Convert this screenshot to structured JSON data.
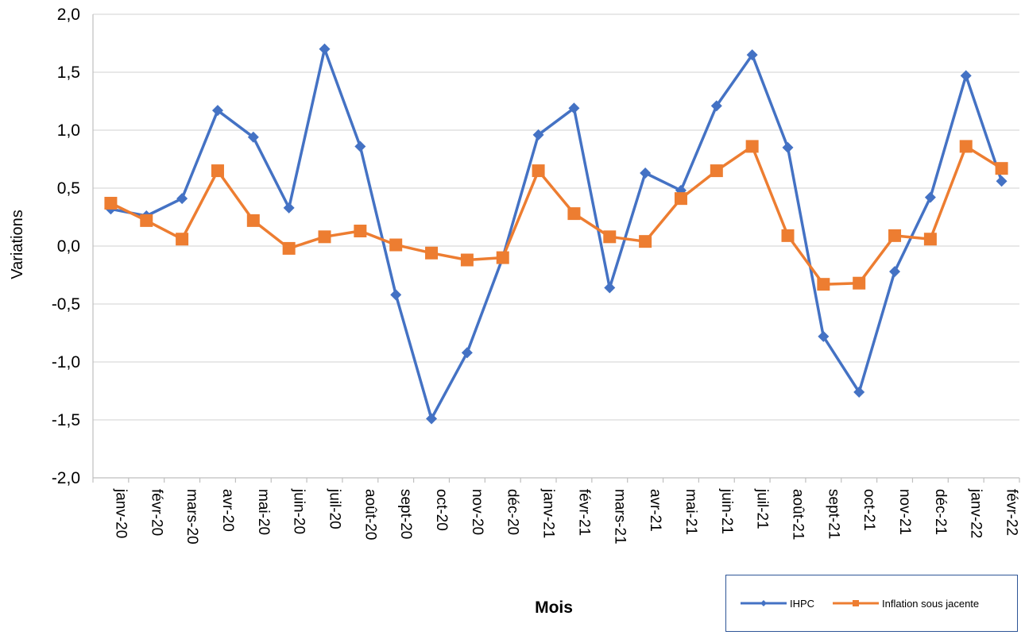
{
  "chart_data": {
    "type": "line",
    "title": "",
    "xlabel": "Mois",
    "ylabel": "Variations",
    "ylim": [
      -2.0,
      2.0
    ],
    "yticks": [
      "2,0",
      "1,5",
      "1,0",
      "0,5",
      "0,0",
      "-0,5",
      "-1,0",
      "-1,5",
      "-2,0"
    ],
    "categories": [
      "janv-20",
      "févr-20",
      "mars-20",
      "avr-20",
      "mai-20",
      "juin-20",
      "juil-20",
      "août-20",
      "sept-20",
      "oct-20",
      "nov-20",
      "déc-20",
      "janv-21",
      "févr-21",
      "mars-21",
      "avr-21",
      "mai-21",
      "juin-21",
      "juil-21",
      "août-21",
      "sept-21",
      "oct-21",
      "nov-21",
      "déc-21",
      "janv-22",
      "févr-22"
    ],
    "series": [
      {
        "name": "IHPC",
        "color": "#4472c4",
        "marker": "diamond",
        "values": [
          0.32,
          0.26,
          0.41,
          1.17,
          0.94,
          0.33,
          1.7,
          0.86,
          -0.42,
          -1.49,
          -0.92,
          -0.1,
          0.96,
          1.19,
          -0.36,
          0.63,
          0.48,
          1.21,
          1.65,
          0.85,
          -0.78,
          -1.26,
          -0.22,
          0.42,
          1.47,
          0.56
        ]
      },
      {
        "name": "Inflation sous jacente",
        "color": "#ed7d31",
        "marker": "square",
        "values": [
          0.37,
          0.22,
          0.06,
          0.65,
          0.22,
          -0.02,
          0.08,
          0.13,
          0.01,
          -0.06,
          -0.12,
          -0.1,
          0.65,
          0.28,
          0.08,
          0.04,
          0.41,
          0.65,
          0.86,
          0.09,
          -0.33,
          -0.32,
          0.09,
          0.06,
          0.86,
          0.67
        ]
      }
    ],
    "grid": true,
    "legend": "bottom-right"
  }
}
